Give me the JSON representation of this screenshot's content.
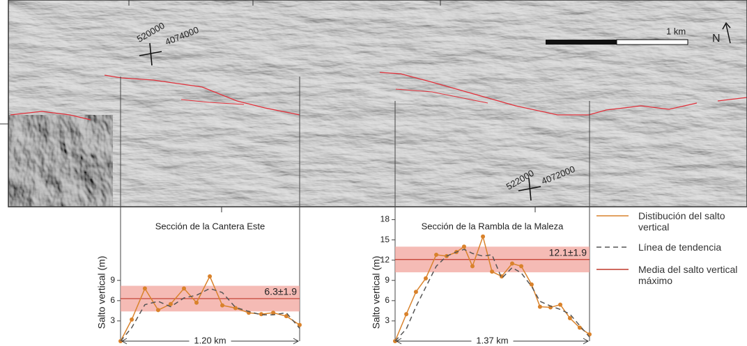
{
  "map": {
    "labels": [
      {
        "text": "520000",
        "x": null
      },
      {
        "text": "4074000"
      },
      {
        "text": "522000"
      },
      {
        "text": "4072000"
      }
    ],
    "scale_bar": "1 km",
    "north": "N"
  },
  "legend": [
    {
      "label": "Distibución del salto vertical",
      "color": "#d9822b",
      "dash": "none"
    },
    {
      "label": "Línea de tendencia",
      "color": "#555555",
      "dash": "7 5"
    },
    {
      "label": "Media del salto vertical máximo",
      "color": "#c0392b",
      "dash": "none"
    }
  ],
  "chart_data": [
    {
      "type": "line",
      "title": "Sección de la Cantera Este",
      "y_label": "Salto vertical (m)",
      "span_label": "1.20 km",
      "x": [
        0,
        0.075,
        0.163,
        0.252,
        0.336,
        0.425,
        0.509,
        0.598,
        0.682,
        0.77,
        0.859,
        0.943,
        1.023,
        1.111,
        1.2
      ],
      "xlim": [
        0,
        1.2
      ],
      "ylim": [
        0,
        19.5
      ],
      "yticks": [
        3,
        6,
        9
      ],
      "series": [
        {
          "color": "#d9822b",
          "markers": true,
          "values": [
            0,
            3.2,
            7.8,
            4.6,
            5.5,
            7.8,
            5.7,
            9.6,
            5.3,
            4.9,
            4.2,
            4.0,
            4.2,
            3.7,
            2.4
          ]
        },
        {
          "color": "#555555",
          "dash": "7 5",
          "values": [
            0,
            2.0,
            5.4,
            5.9,
            5.1,
            6.4,
            6.8,
            7.8,
            7.2,
            5.0,
            4.4,
            3.9,
            3.9,
            4.2,
            1.9
          ]
        }
      ],
      "mean": 6.3,
      "std": 1.9,
      "mean_label": "6.3±1.9",
      "mean_color": "#c0392b",
      "band_color": "#f2a49c"
    },
    {
      "type": "line",
      "title": "Sección de la Rambla de la Maleza",
      "y_label": "Salto vertical (m)",
      "span_label": "1.37 km",
      "x": [
        0,
        0.079,
        0.147,
        0.216,
        0.29,
        0.363,
        0.432,
        0.486,
        0.545,
        0.619,
        0.683,
        0.751,
        0.825,
        0.889,
        0.962,
        1.021,
        1.095,
        1.164,
        1.232,
        1.301,
        1.37
      ],
      "xlim": [
        0,
        1.37
      ],
      "ylim": [
        0,
        19.5
      ],
      "yticks": [
        3,
        6,
        9,
        12,
        15,
        18
      ],
      "series": [
        {
          "color": "#d9822b",
          "markers": true,
          "values": [
            0,
            4.0,
            7.3,
            9.3,
            12.8,
            12.6,
            13.2,
            14.0,
            11.1,
            15.5,
            10.3,
            9.6,
            11.5,
            11.1,
            8.4,
            5.1,
            5.0,
            5.4,
            3.4,
            2.0,
            1.0
          ]
        },
        {
          "color": "#555555",
          "dash": "7 5",
          "values": [
            0,
            1.8,
            5.1,
            8.0,
            11.1,
            12.6,
            13.2,
            13.6,
            13.0,
            12.6,
            12.8,
            9.3,
            10.9,
            10.1,
            8.1,
            5.9,
            5.2,
            4.7,
            4.0,
            2.3,
            0.6
          ]
        }
      ],
      "mean": 12.1,
      "std": 1.9,
      "mean_label": "12.1±1.9",
      "mean_color": "#c0392b",
      "band_color": "#f2a49c"
    }
  ]
}
